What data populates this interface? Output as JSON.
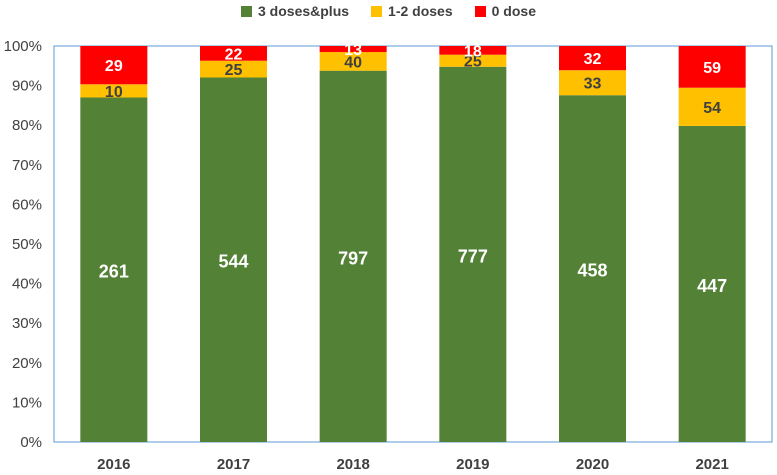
{
  "chart_data": {
    "type": "bar",
    "stacked": true,
    "normalized": true,
    "categories": [
      "2016",
      "2017",
      "2018",
      "2019",
      "2020",
      "2021"
    ],
    "series": [
      {
        "name": "3 doses&plus",
        "color": "#538135",
        "label_color": "#ffffff",
        "values": [
          261,
          544,
          797,
          777,
          458,
          447
        ]
      },
      {
        "name": "1-2 doses",
        "color": "#ffc000",
        "label_color": "#404040",
        "values": [
          10,
          25,
          40,
          25,
          33,
          54
        ]
      },
      {
        "name": "0 dose",
        "color": "#ff0000",
        "label_color": "#ffffff",
        "values": [
          29,
          22,
          13,
          18,
          32,
          59
        ]
      }
    ],
    "y_ticks": [
      "0%",
      "10%",
      "20%",
      "30%",
      "40%",
      "50%",
      "60%",
      "70%",
      "80%",
      "90%",
      "100%"
    ],
    "ylim": [
      0,
      1
    ],
    "legend_position": "top",
    "grid": false,
    "title": "",
    "xlabel": "",
    "ylabel": ""
  }
}
